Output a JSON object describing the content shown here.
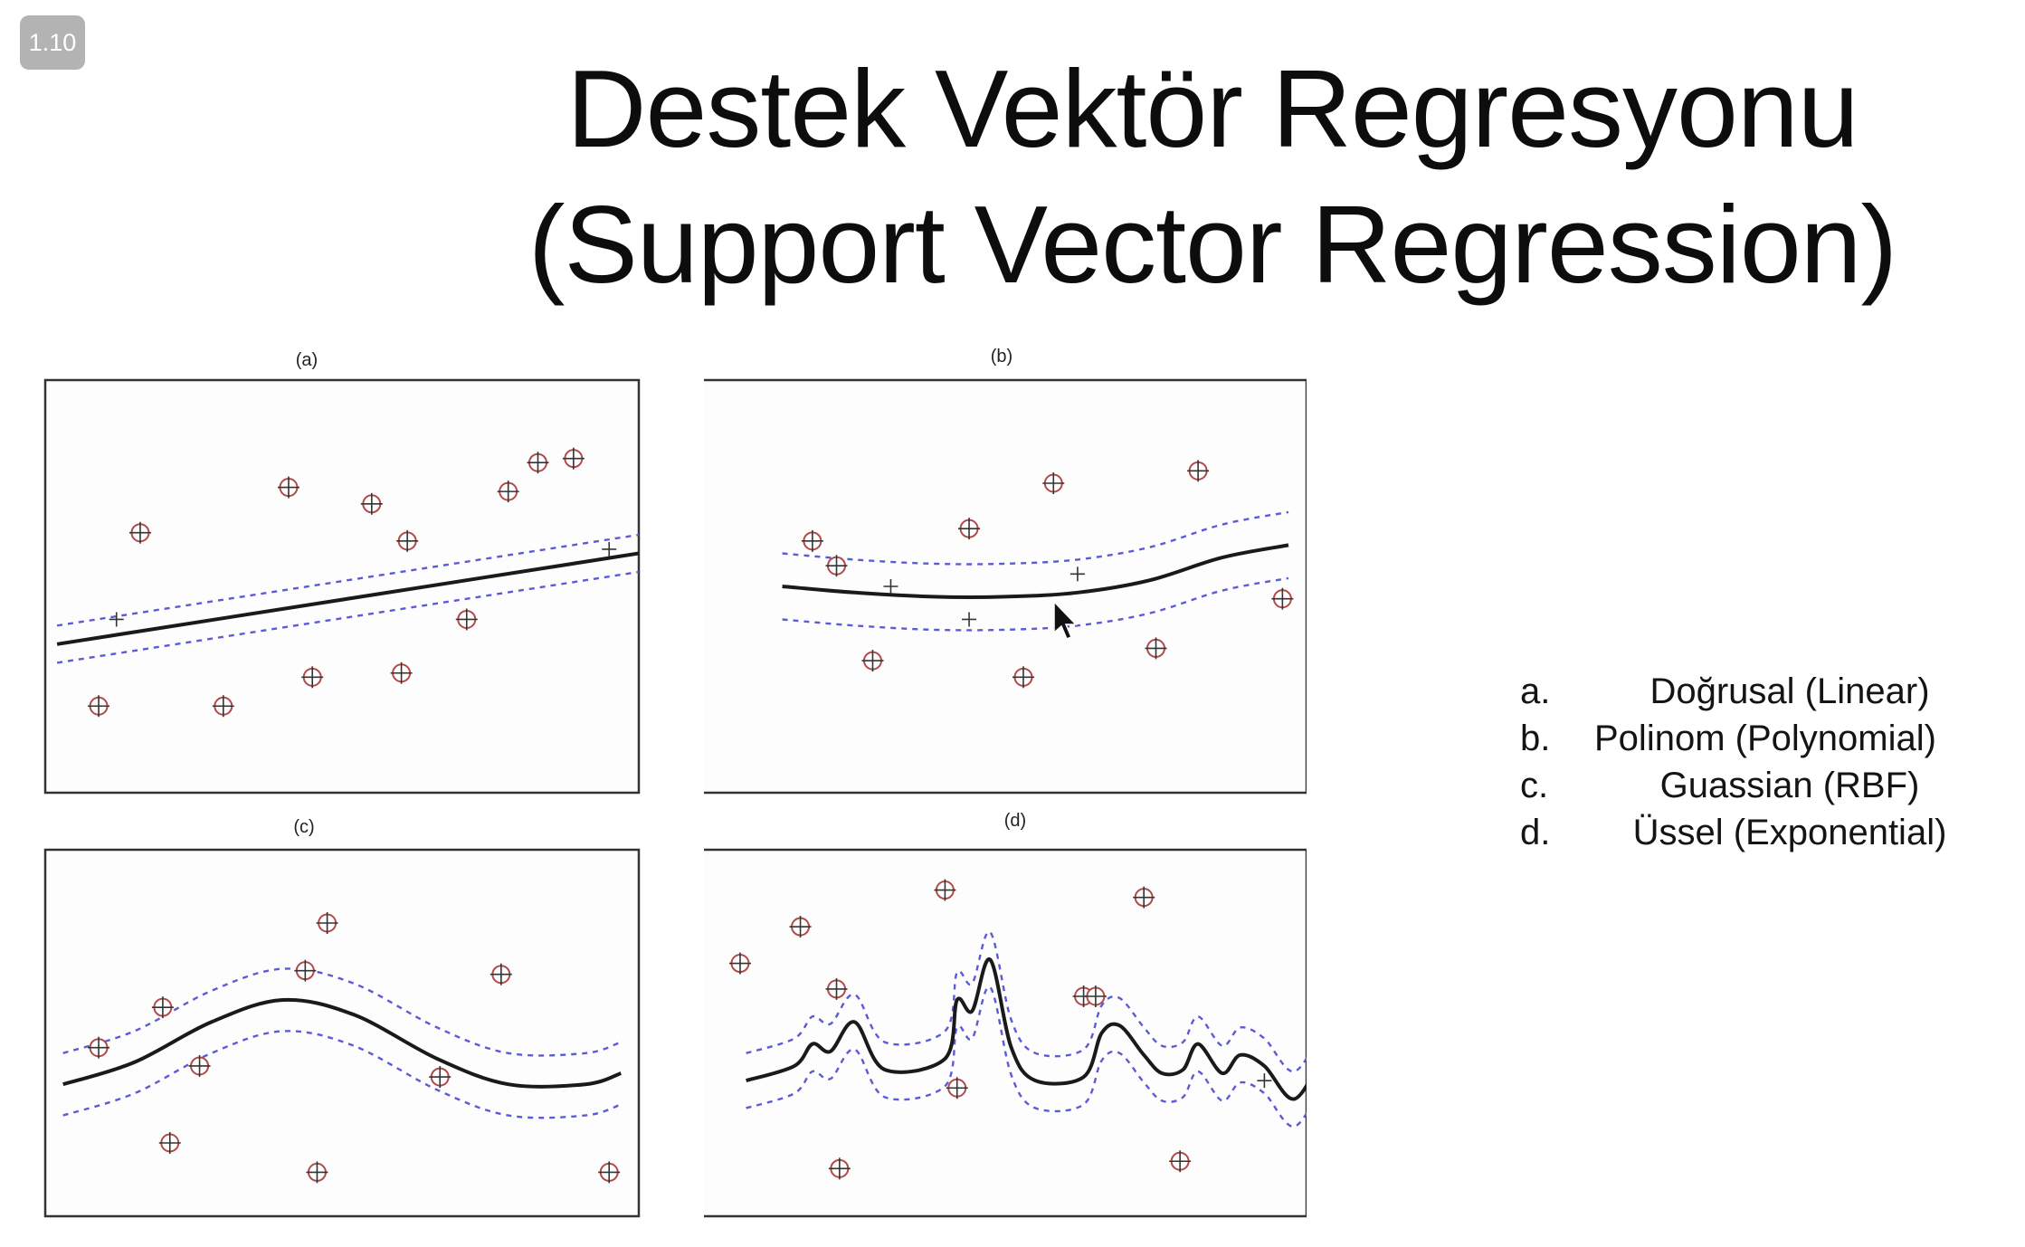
{
  "badge": {
    "version": "1.10"
  },
  "title": {
    "line1": "Destek Vektör Regresyonu",
    "line2": "(Support Vector Regression)"
  },
  "legend": [
    {
      "letter": "a.",
      "text": "Doğrusal (Linear)"
    },
    {
      "letter": "b.",
      "text": "Polinom (Polynomial)"
    },
    {
      "letter": "c.",
      "text": "Guassian (RBF)"
    },
    {
      "letter": "d.",
      "text": "Üssel (Exponential)"
    }
  ],
  "colors": {
    "support_vector": "#b24a4a",
    "margin": "#5b5bd6",
    "regression": "#1a1a1a",
    "frame": "#333333"
  },
  "chart_data": [
    {
      "type": "scatter",
      "title": "(a)",
      "xlim": [
        0,
        10
      ],
      "ylim": [
        0,
        10
      ],
      "regression": [
        [
          0.2,
          3.6
        ],
        [
          10,
          5.8
        ]
      ],
      "epsilon": 0.45,
      "support_vectors": [
        [
          0.9,
          2.1
        ],
        [
          1.6,
          6.3
        ],
        [
          3.0,
          2.1
        ],
        [
          4.1,
          7.4
        ],
        [
          4.5,
          2.8
        ],
        [
          5.5,
          7.0
        ],
        [
          6.0,
          2.9
        ],
        [
          6.1,
          6.1
        ],
        [
          7.1,
          4.2
        ],
        [
          7.8,
          7.3
        ],
        [
          8.3,
          8.0
        ],
        [
          8.9,
          8.1
        ]
      ],
      "inside_points": [
        [
          1.2,
          4.2
        ],
        [
          9.5,
          5.9
        ]
      ]
    },
    {
      "type": "scatter",
      "title": "(b)",
      "xlim": [
        0,
        10
      ],
      "ylim": [
        0,
        10
      ],
      "regression_curve": [
        [
          1.3,
          5.0
        ],
        [
          2.5,
          4.85
        ],
        [
          3.8,
          4.75
        ],
        [
          5.0,
          4.75
        ],
        [
          6.2,
          4.85
        ],
        [
          7.4,
          5.15
        ],
        [
          8.6,
          5.7
        ],
        [
          9.7,
          6.0
        ]
      ],
      "epsilon": 0.8,
      "support_vectors": [
        [
          1.8,
          6.1
        ],
        [
          2.2,
          5.5
        ],
        [
          2.8,
          3.2
        ],
        [
          4.4,
          6.4
        ],
        [
          5.3,
          2.8
        ],
        [
          5.8,
          7.5
        ],
        [
          7.5,
          3.5
        ],
        [
          8.2,
          7.8
        ],
        [
          9.6,
          4.7
        ]
      ],
      "inside_points": [
        [
          3.1,
          5.0
        ],
        [
          4.4,
          4.2
        ],
        [
          6.2,
          5.3
        ]
      ]
    },
    {
      "type": "scatter",
      "title": "(c)",
      "xlim": [
        0,
        10
      ],
      "ylim": [
        0,
        10
      ],
      "regression_curve": [
        [
          0.3,
          3.6
        ],
        [
          1.5,
          4.2
        ],
        [
          2.8,
          5.3
        ],
        [
          4.0,
          5.9
        ],
        [
          5.2,
          5.5
        ],
        [
          6.6,
          4.3
        ],
        [
          7.8,
          3.6
        ],
        [
          9.1,
          3.6
        ],
        [
          9.7,
          3.9
        ]
      ],
      "epsilon": 0.85,
      "support_vectors": [
        [
          0.9,
          4.6
        ],
        [
          1.98,
          5.7
        ],
        [
          2.1,
          2.0
        ],
        [
          2.6,
          4.1
        ],
        [
          4.38,
          6.7
        ],
        [
          4.75,
          8.0
        ],
        [
          4.58,
          1.2
        ],
        [
          6.65,
          3.8
        ],
        [
          7.68,
          6.6
        ],
        [
          9.5,
          1.2
        ]
      ],
      "inside_points": []
    },
    {
      "type": "scatter",
      "title": "(d)",
      "xlim": [
        0,
        10
      ],
      "ylim": [
        0,
        10
      ],
      "regression_curve": [
        [
          0.7,
          3.7
        ],
        [
          1.5,
          4.1
        ],
        [
          1.8,
          4.7
        ],
        [
          2.1,
          4.5
        ],
        [
          2.5,
          5.3
        ],
        [
          3.0,
          4.0
        ],
        [
          4.0,
          4.3
        ],
        [
          4.2,
          5.9
        ],
        [
          4.45,
          5.6
        ],
        [
          4.75,
          7.0
        ],
        [
          5.1,
          4.6
        ],
        [
          5.5,
          3.7
        ],
        [
          6.3,
          3.8
        ],
        [
          6.6,
          5.0
        ],
        [
          6.9,
          5.2
        ],
        [
          7.3,
          4.4
        ],
        [
          7.6,
          3.9
        ],
        [
          7.95,
          4.0
        ],
        [
          8.2,
          4.7
        ],
        [
          8.6,
          3.9
        ],
        [
          8.9,
          4.4
        ],
        [
          9.3,
          4.1
        ],
        [
          9.8,
          3.2
        ],
        [
          10.3,
          4.5
        ]
      ],
      "epsilon": 0.75,
      "support_vectors": [
        [
          0.6,
          6.9
        ],
        [
          1.6,
          7.9
        ],
        [
          2.25,
          1.3
        ],
        [
          2.2,
          6.2
        ],
        [
          4.0,
          8.9
        ],
        [
          4.2,
          3.5
        ],
        [
          6.3,
          6.0
        ],
        [
          6.5,
          6.0
        ],
        [
          7.3,
          8.7
        ],
        [
          7.9,
          1.5
        ]
      ],
      "inside_points": [
        [
          9.3,
          3.7
        ]
      ]
    }
  ]
}
